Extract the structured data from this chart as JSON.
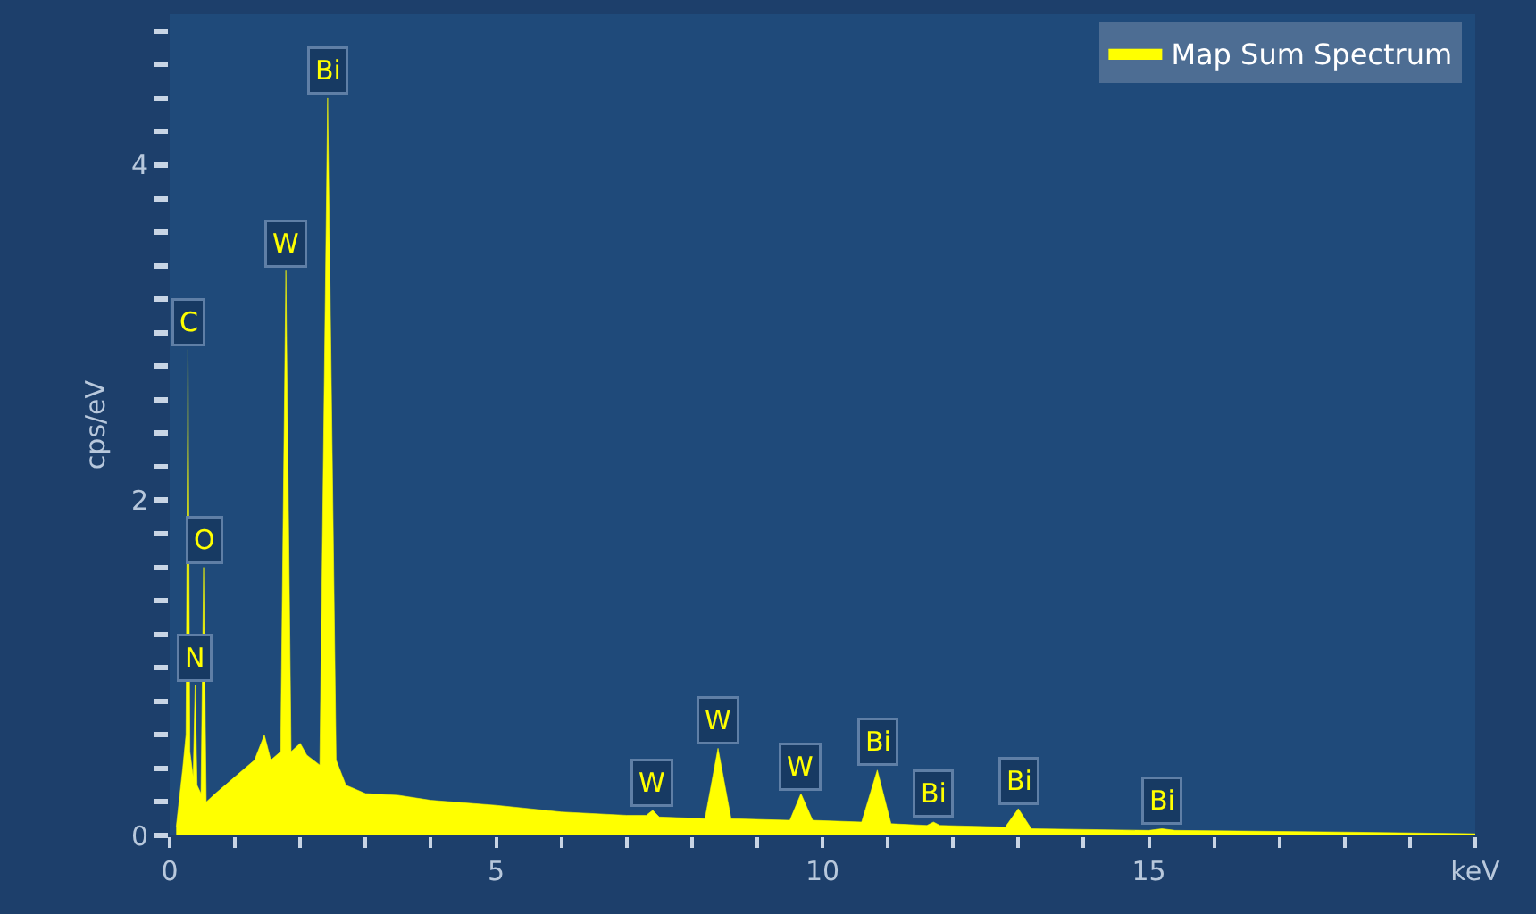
{
  "chart_data": {
    "type": "area",
    "ylabel": "cps/eV",
    "series": [
      {
        "name": "Map Sum Spectrum",
        "color": "#ffff00",
        "x": [
          0.1,
          0.2,
          0.25,
          0.28,
          0.31,
          0.36,
          0.39,
          0.42,
          0.48,
          0.52,
          0.56,
          0.7,
          1.0,
          1.3,
          1.45,
          1.55,
          1.7,
          1.78,
          1.86,
          2.0,
          2.1,
          2.3,
          2.42,
          2.55,
          2.7,
          3.0,
          3.5,
          4.0,
          5.0,
          6.0,
          7.0,
          7.3,
          7.4,
          7.5,
          8.2,
          8.4,
          8.6,
          9.5,
          9.67,
          9.85,
          10.6,
          10.84,
          11.05,
          11.6,
          11.7,
          11.8,
          12.8,
          13.0,
          13.2,
          15.0,
          15.2,
          15.4,
          18.0,
          20.0
        ],
        "values": [
          0.05,
          0.4,
          0.6,
          2.9,
          0.5,
          0.35,
          0.9,
          0.3,
          0.25,
          1.6,
          0.2,
          0.25,
          0.35,
          0.45,
          0.6,
          0.45,
          0.5,
          3.37,
          0.5,
          0.55,
          0.48,
          0.42,
          4.4,
          0.45,
          0.3,
          0.25,
          0.24,
          0.21,
          0.18,
          0.14,
          0.12,
          0.12,
          0.15,
          0.11,
          0.1,
          0.52,
          0.1,
          0.09,
          0.25,
          0.09,
          0.08,
          0.39,
          0.07,
          0.06,
          0.08,
          0.06,
          0.05,
          0.16,
          0.04,
          0.03,
          0.04,
          0.03,
          0.02,
          0.01
        ]
      }
    ],
    "annotations": [
      {
        "text": "C",
        "x": 0.28,
        "y": 2.9
      },
      {
        "text": "N",
        "x": 0.39,
        "y": 0.9
      },
      {
        "text": "O",
        "x": 0.52,
        "y": 1.6
      },
      {
        "text": "W",
        "x": 1.78,
        "y": 3.37
      },
      {
        "text": "Bi",
        "x": 2.42,
        "y": 4.4
      },
      {
        "text": "W",
        "x": 7.4,
        "y": 0.15
      },
      {
        "text": "W",
        "x": 8.4,
        "y": 0.52
      },
      {
        "text": "W",
        "x": 9.67,
        "y": 0.25
      },
      {
        "text": "Bi",
        "x": 10.84,
        "y": 0.39
      },
      {
        "text": "Bi",
        "x": 11.7,
        "y": 0.08
      },
      {
        "text": "Bi",
        "x": 13.0,
        "y": 0.16
      },
      {
        "text": "Bi",
        "x": 15.2,
        "y": 0.04
      }
    ],
    "xlim": [
      0,
      20
    ],
    "xticks": [
      0,
      {
        "value": 1,
        "label": null
      },
      {
        "value": 2,
        "label": null
      },
      {
        "value": 3,
        "label": null
      },
      {
        "value": 4,
        "label": null
      },
      5,
      {
        "value": 6,
        "label": null
      },
      {
        "value": 7,
        "label": null
      },
      {
        "value": 8,
        "label": null
      },
      {
        "value": 9,
        "label": null
      },
      10,
      {
        "value": 11,
        "label": null
      },
      {
        "value": 12,
        "label": null
      },
      {
        "value": 13,
        "label": null
      },
      {
        "value": 14,
        "label": null
      },
      15,
      {
        "value": 16,
        "label": null
      },
      {
        "value": 17,
        "label": null
      },
      {
        "value": 18,
        "label": null
      },
      {
        "value": 19,
        "label": null
      },
      {
        "value": 20,
        "label": "keV"
      }
    ],
    "ylim": [
      0,
      4.9
    ],
    "yticks": [
      0,
      {
        "value": 0.2,
        "label": null
      },
      {
        "value": 0.4,
        "label": null
      },
      {
        "value": 0.6,
        "label": null
      },
      {
        "value": 0.8,
        "label": null
      },
      {
        "value": 1,
        "label": null
      },
      {
        "value": 1.2,
        "label": null
      },
      {
        "value": 1.4,
        "label": null
      },
      {
        "value": 1.6,
        "label": null
      },
      {
        "value": 1.8,
        "label": null
      },
      2,
      {
        "value": 2.2,
        "label": null
      },
      {
        "value": 2.4,
        "label": null
      },
      {
        "value": 2.6,
        "label": null
      },
      {
        "value": 2.8,
        "label": null
      },
      {
        "value": 3,
        "label": null
      },
      {
        "value": 3.2,
        "label": null
      },
      {
        "value": 3.4,
        "label": null
      },
      {
        "value": 3.6,
        "label": null
      },
      {
        "value": 3.8,
        "label": null
      },
      4,
      {
        "value": 4.2,
        "label": null
      },
      {
        "value": 4.4,
        "label": null
      },
      {
        "value": 4.6,
        "label": null
      },
      {
        "value": 4.8,
        "label": null
      }
    ],
    "legend": "top right"
  }
}
